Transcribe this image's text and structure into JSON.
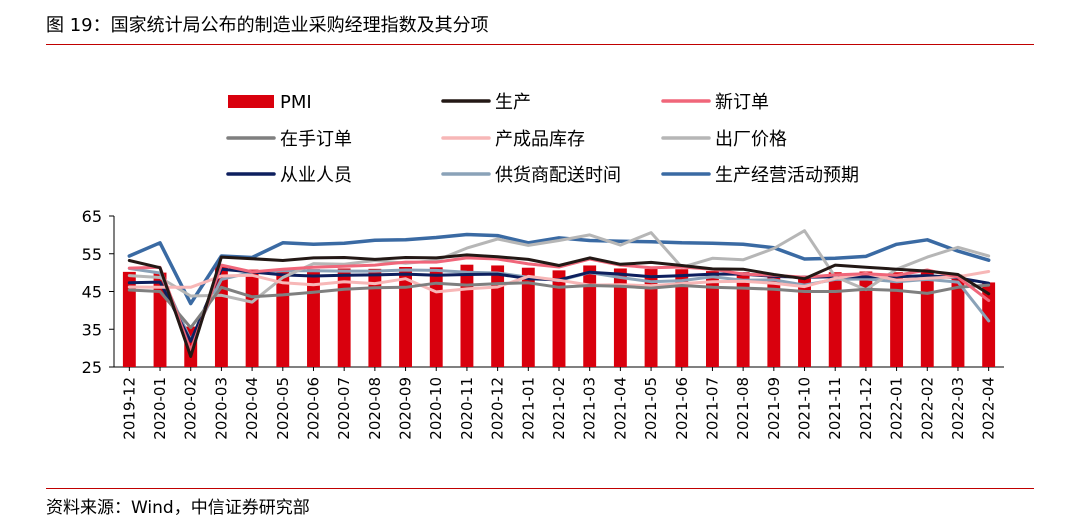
{
  "figure": {
    "title": "图 19：国家统计局公布的制造业采购经理指数及其分项",
    "source": "资料来源：Wind，中信证券研究部"
  },
  "colors": {
    "accent_rule": "#c00000"
  },
  "chart_data": {
    "type": "bar",
    "title": "",
    "xlabel": "",
    "ylabel": "",
    "ylim": [
      25,
      65
    ],
    "yticks": [
      25,
      35,
      45,
      55,
      65
    ],
    "grid": false,
    "legend_position": "top",
    "categories": [
      "2019-12",
      "2020-01",
      "2020-02",
      "2020-03",
      "2020-04",
      "2020-05",
      "2020-06",
      "2020-07",
      "2020-08",
      "2020-09",
      "2020-10",
      "2020-11",
      "2020-12",
      "2021-01",
      "2021-02",
      "2021-03",
      "2021-04",
      "2021-05",
      "2021-06",
      "2021-07",
      "2021-08",
      "2021-09",
      "2021-10",
      "2021-11",
      "2021-12",
      "2022-01",
      "2022-02",
      "2022-03",
      "2022-04"
    ],
    "series": [
      {
        "name": "PMI",
        "kind": "bar",
        "color": "#d9000d",
        "width": 0,
        "values": [
          50.2,
          50.0,
          35.7,
          52.0,
          50.8,
          50.6,
          50.9,
          51.1,
          51.0,
          51.5,
          51.4,
          52.1,
          51.9,
          51.3,
          50.6,
          51.9,
          51.1,
          51.0,
          50.9,
          50.4,
          50.1,
          49.6,
          49.2,
          50.1,
          50.3,
          50.1,
          50.2,
          49.5,
          47.4
        ]
      },
      {
        "name": "生产",
        "kind": "line",
        "color": "#231815",
        "width": 3,
        "values": [
          53.2,
          51.3,
          27.8,
          54.1,
          53.7,
          53.2,
          53.9,
          54.0,
          53.5,
          54.0,
          53.9,
          54.7,
          54.2,
          53.5,
          51.9,
          53.9,
          52.2,
          52.7,
          51.9,
          51.0,
          50.9,
          49.5,
          48.4,
          52.0,
          51.4,
          50.9,
          50.4,
          49.5,
          44.4
        ]
      },
      {
        "name": "新订单",
        "kind": "line",
        "color": "#f0667a",
        "width": 3,
        "values": [
          51.2,
          51.4,
          29.3,
          52.0,
          50.2,
          50.9,
          51.4,
          51.7,
          52.0,
          52.8,
          52.8,
          53.9,
          53.6,
          52.3,
          51.5,
          53.6,
          52.0,
          51.3,
          51.5,
          50.9,
          49.6,
          49.3,
          48.8,
          49.4,
          49.7,
          49.3,
          50.7,
          48.8,
          42.6
        ]
      },
      {
        "name": "在手订单",
        "kind": "line",
        "color": "#7f7f7f",
        "width": 3,
        "values": [
          45.4,
          45.0,
          35.4,
          46.1,
          43.6,
          44.1,
          44.8,
          45.6,
          46.0,
          46.1,
          47.2,
          46.7,
          47.1,
          47.3,
          46.1,
          46.6,
          46.4,
          45.9,
          46.6,
          46.1,
          45.9,
          45.6,
          45.0,
          45.0,
          45.6,
          45.3,
          44.5,
          46.1,
          46.7
        ]
      },
      {
        "name": "产成品库存",
        "kind": "line",
        "color": "#f7b7b7",
        "width": 3,
        "values": [
          46.2,
          46.1,
          46.1,
          49.1,
          49.3,
          47.3,
          46.8,
          47.6,
          47.1,
          48.4,
          44.9,
          45.7,
          46.2,
          49.0,
          48.0,
          46.7,
          46.8,
          46.5,
          47.1,
          47.6,
          47.7,
          47.2,
          46.3,
          48.5,
          49.8,
          48.0,
          48.5,
          48.9,
          50.3
        ]
      },
      {
        "name": "出厂价格",
        "kind": "line",
        "color": "#b6b6b6",
        "width": 3,
        "values": [
          49.2,
          48.7,
          43.8,
          44.0,
          42.2,
          48.7,
          52.4,
          52.2,
          53.2,
          52.5,
          53.2,
          56.5,
          58.9,
          57.2,
          58.5,
          60.0,
          57.3,
          60.6,
          51.4,
          53.8,
          53.4,
          56.4,
          61.1,
          48.9,
          45.5,
          50.9,
          54.1,
          56.7,
          54.4
        ]
      },
      {
        "name": "从业人员",
        "kind": "line",
        "color": "#0d1f5e",
        "width": 3,
        "values": [
          47.3,
          47.5,
          31.8,
          50.9,
          50.2,
          49.4,
          49.1,
          49.3,
          49.4,
          49.6,
          49.3,
          49.5,
          49.6,
          48.4,
          48.1,
          50.1,
          49.6,
          48.9,
          49.2,
          49.6,
          49.6,
          49.0,
          48.8,
          48.9,
          48.9,
          48.9,
          49.2,
          48.6,
          47.2
        ]
      },
      {
        "name": "供货商配送时间",
        "kind": "line",
        "color": "#8aa2b8",
        "width": 3,
        "values": [
          51.1,
          49.9,
          32.1,
          48.2,
          50.1,
          50.5,
          50.5,
          50.4,
          50.4,
          50.7,
          50.6,
          50.1,
          49.9,
          48.8,
          47.9,
          50.0,
          48.7,
          47.6,
          47.9,
          48.9,
          48.0,
          48.1,
          46.7,
          48.2,
          48.3,
          47.6,
          48.2,
          47.5,
          37.2
        ]
      },
      {
        "name": "生产经营活动预期",
        "kind": "line",
        "color": "#3a6aa3",
        "width": 3.5,
        "values": [
          54.4,
          57.9,
          41.8,
          54.4,
          54.0,
          57.9,
          57.5,
          57.8,
          58.6,
          58.7,
          59.3,
          60.1,
          59.8,
          57.9,
          59.2,
          58.5,
          58.3,
          58.2,
          57.9,
          57.8,
          57.5,
          56.6,
          53.6,
          53.8,
          54.3,
          57.5,
          58.7,
          55.7,
          53.3
        ]
      }
    ]
  }
}
